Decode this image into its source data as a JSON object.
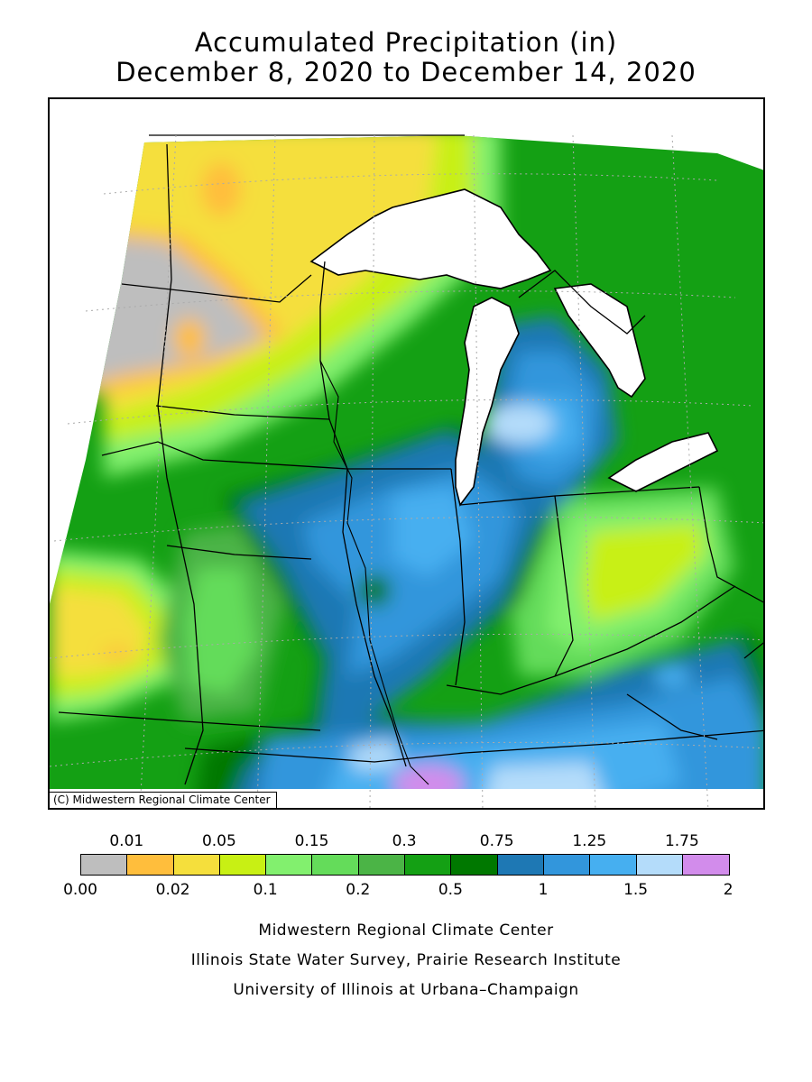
{
  "header": {
    "title": "Accumulated Precipitation (in)",
    "subtitle": "December 8, 2020 to December 14, 2020"
  },
  "map": {
    "copyright": "(C) Midwestern Regional Climate Center",
    "region": "Midwest United States",
    "water_color": "#ffffff",
    "border_color": "#000000"
  },
  "legend": {
    "top_labels": [
      "0.01",
      "0.05",
      "0.15",
      "0.3",
      "0.75",
      "1.25",
      "1.75"
    ],
    "bottom_labels": [
      "0.00",
      "0.02",
      "0.1",
      "0.2",
      "0.5",
      "1",
      "1.5",
      "2"
    ],
    "colors": [
      "#bebebe",
      "#ffbe3c",
      "#f5df3c",
      "#c8f014",
      "#82f06e",
      "#64dc5a",
      "#4bb446",
      "#14a014",
      "#007800",
      "#1e78b4",
      "#3296dc",
      "#46aff0",
      "#b4dcfa",
      "#d28ceb"
    ]
  },
  "footer": {
    "line1": "Midwestern Regional Climate Center",
    "line2": "Illinois State Water Survey, Prairie Research Institute",
    "line3": "University of Illinois at Urbana–Champaign"
  }
}
